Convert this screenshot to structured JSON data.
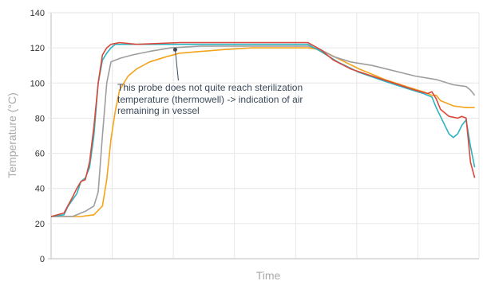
{
  "chart_data": {
    "type": "line",
    "xlabel": "Time",
    "ylabel": "Temperature (°C)",
    "ylim": [
      0,
      140
    ],
    "yticks": [
      0,
      20,
      40,
      60,
      80,
      100,
      120,
      140
    ],
    "xlim": [
      0,
      100
    ],
    "grid": true,
    "legend": "none",
    "annotation": {
      "lines": [
        "This probe does not quite reach sterilization",
        "temperature (thermowell) -> indication of air",
        "remaining in vessel"
      ],
      "point": [
        29,
        119
      ]
    },
    "series": [
      {
        "color": "#f5a31a",
        "points": [
          [
            0,
            24
          ],
          [
            7,
            24
          ],
          [
            10,
            25
          ],
          [
            12,
            30
          ],
          [
            13,
            45
          ],
          [
            14,
            68
          ],
          [
            15,
            84
          ],
          [
            16,
            96
          ],
          [
            18,
            104
          ],
          [
            20,
            108
          ],
          [
            23,
            112
          ],
          [
            27,
            115
          ],
          [
            30,
            117
          ],
          [
            35,
            118
          ],
          [
            40,
            119
          ],
          [
            47,
            120
          ],
          [
            53,
            120
          ],
          [
            60,
            120
          ],
          [
            63,
            119
          ],
          [
            67,
            114
          ],
          [
            72,
            108
          ],
          [
            78,
            102
          ],
          [
            83,
            98
          ],
          [
            87,
            95
          ],
          [
            89,
            93
          ],
          [
            90,
            93
          ],
          [
            91,
            90
          ],
          [
            94,
            87
          ],
          [
            97,
            86
          ],
          [
            99,
            86
          ]
        ]
      },
      {
        "color": "#9e9e9e",
        "points": [
          [
            0,
            24
          ],
          [
            5,
            24
          ],
          [
            8,
            27
          ],
          [
            10,
            30
          ],
          [
            11,
            38
          ],
          [
            12,
            70
          ],
          [
            13,
            100
          ],
          [
            14,
            112
          ],
          [
            16,
            114
          ],
          [
            19,
            116
          ],
          [
            23,
            118
          ],
          [
            28,
            120
          ],
          [
            35,
            121
          ],
          [
            45,
            121
          ],
          [
            55,
            121
          ],
          [
            60,
            121
          ],
          [
            63,
            119
          ],
          [
            66,
            115
          ],
          [
            70,
            112
          ],
          [
            75,
            110
          ],
          [
            80,
            107
          ],
          [
            85,
            104
          ],
          [
            90,
            102
          ],
          [
            94,
            99
          ],
          [
            97,
            98
          ],
          [
            98,
            96
          ],
          [
            99,
            93
          ]
        ]
      },
      {
        "color": "#2bb3c0",
        "points": [
          [
            0,
            24
          ],
          [
            3,
            25
          ],
          [
            4,
            30
          ],
          [
            6,
            37
          ],
          [
            7,
            44
          ],
          [
            8,
            46
          ],
          [
            9,
            52
          ],
          [
            10,
            70
          ],
          [
            11,
            100
          ],
          [
            12,
            113
          ],
          [
            13,
            117
          ],
          [
            14,
            120
          ],
          [
            15,
            122
          ],
          [
            17,
            122
          ],
          [
            20,
            122
          ],
          [
            30,
            122
          ],
          [
            45,
            122
          ],
          [
            60,
            122
          ],
          [
            63,
            118
          ],
          [
            67,
            112
          ],
          [
            72,
            106
          ],
          [
            78,
            101
          ],
          [
            83,
            97
          ],
          [
            87,
            94
          ],
          [
            89,
            92
          ],
          [
            90,
            86
          ],
          [
            92,
            76
          ],
          [
            93,
            71
          ],
          [
            94,
            69
          ],
          [
            95,
            71
          ],
          [
            96,
            76
          ],
          [
            97,
            79
          ],
          [
            98,
            64
          ],
          [
            99,
            52
          ]
        ]
      },
      {
        "color": "#d9483b",
        "points": [
          [
            0,
            24
          ],
          [
            3,
            26
          ],
          [
            5,
            35
          ],
          [
            6,
            40
          ],
          [
            7,
            44
          ],
          [
            8,
            45
          ],
          [
            9,
            55
          ],
          [
            10,
            75
          ],
          [
            11,
            100
          ],
          [
            12,
            116
          ],
          [
            13,
            120
          ],
          [
            14,
            122
          ],
          [
            16,
            123
          ],
          [
            20,
            122
          ],
          [
            30,
            123
          ],
          [
            45,
            123
          ],
          [
            60,
            123
          ],
          [
            63,
            119
          ],
          [
            66,
            113
          ],
          [
            70,
            108
          ],
          [
            75,
            104
          ],
          [
            80,
            100
          ],
          [
            85,
            96
          ],
          [
            88,
            94
          ],
          [
            89,
            95
          ],
          [
            90,
            91
          ],
          [
            91,
            85
          ],
          [
            93,
            81
          ],
          [
            95,
            80
          ],
          [
            96,
            81
          ],
          [
            97,
            80
          ],
          [
            98,
            55
          ],
          [
            99,
            46
          ]
        ]
      }
    ]
  }
}
